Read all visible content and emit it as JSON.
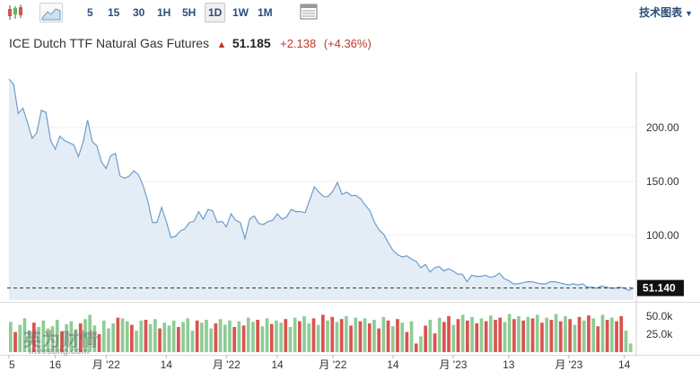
{
  "toolbar": {
    "candle_icon": "candlestick-icon",
    "area_icon": "area-chart-icon",
    "timeframes": [
      "5",
      "15",
      "30",
      "1H",
      "5H",
      "1D",
      "1W",
      "1M"
    ],
    "active_timeframe": "1D",
    "table_icon": "table-icon",
    "tech_chart_label": "技术图表"
  },
  "header": {
    "title": "ICE Dutch TTF Natural Gas Futures",
    "last_price": "51.185",
    "change": "+2.138",
    "change_pct": "(+4.36%)"
  },
  "watermark": {
    "main": "英为财情",
    "sub": "investing.com"
  },
  "colors": {
    "line": "#6d9cc9",
    "area": "#e4edf6",
    "up_volume": "#d9534f",
    "down_volume": "#8fcc96",
    "price_tag": "#111111",
    "change_up": "#c0392b"
  },
  "chart_data": {
    "type": "area",
    "price_tag": "51.140",
    "y_ticks": [
      "200.00",
      "150.00",
      "100.00"
    ],
    "y_tick_values": [
      200,
      150,
      100
    ],
    "ylim": [
      40,
      250
    ],
    "volume_ticks": [
      "50.0k",
      "25.0k"
    ],
    "volume_tick_values": [
      50000,
      25000
    ],
    "volume_ylim": [
      0,
      65000
    ],
    "x_labels": [
      "5",
      "16",
      "月 '22",
      "14",
      "月 '22",
      "14",
      "月 '22",
      "14",
      "月 '23",
      "13",
      "月 '23",
      "14"
    ],
    "x_label_index": [
      0,
      10,
      21,
      34,
      47,
      58,
      70,
      83,
      96,
      108,
      121,
      133
    ],
    "series": [
      {
        "values": [
          245,
          240,
          213,
          218,
          205,
          190,
          195,
          216,
          214,
          188,
          180,
          192,
          188,
          186,
          184,
          173,
          186,
          207,
          187,
          183,
          168,
          162,
          174,
          176,
          155,
          153,
          155,
          160,
          156,
          146,
          132,
          112,
          112,
          126,
          113,
          98,
          99,
          104,
          106,
          112,
          113,
          122,
          115,
          124,
          123,
          112,
          113,
          108,
          120,
          114,
          112,
          97,
          115,
          118,
          111,
          110,
          113,
          114,
          120,
          115,
          117,
          124,
          122,
          122,
          121,
          133,
          145,
          140,
          136,
          136,
          141,
          149,
          138,
          140,
          137,
          137,
          134,
          128,
          123,
          112,
          105,
          101,
          93,
          86,
          82,
          80,
          81,
          78,
          76,
          70,
          73,
          66,
          70,
          71,
          67,
          69,
          67,
          64,
          64,
          57,
          63,
          62,
          62,
          63,
          61,
          62,
          65,
          60,
          58,
          55,
          55,
          56,
          57,
          57,
          56,
          55,
          55,
          57,
          57,
          56,
          55,
          54,
          55,
          54,
          55,
          52,
          52,
          51,
          53,
          52,
          51,
          51,
          52,
          51,
          49,
          51.14
        ]
      }
    ],
    "volume": [
      {
        "v": 42000,
        "up": false
      },
      {
        "v": 28000,
        "up": true
      },
      {
        "v": 38000,
        "up": false
      },
      {
        "v": 47000,
        "up": false
      },
      {
        "v": 30000,
        "up": false
      },
      {
        "v": 41000,
        "up": true
      },
      {
        "v": 35000,
        "up": false
      },
      {
        "v": 44000,
        "up": false
      },
      {
        "v": 33000,
        "up": false
      },
      {
        "v": 36000,
        "up": false
      },
      {
        "v": 45000,
        "up": false
      },
      {
        "v": 29000,
        "up": true
      },
      {
        "v": 39000,
        "up": false
      },
      {
        "v": 43000,
        "up": false
      },
      {
        "v": 32000,
        "up": false
      },
      {
        "v": 40000,
        "up": true
      },
      {
        "v": 46000,
        "up": false
      },
      {
        "v": 52000,
        "up": false
      },
      {
        "v": 37000,
        "up": false
      },
      {
        "v": 25000,
        "up": true
      },
      {
        "v": 44000,
        "up": false
      },
      {
        "v": 33000,
        "up": false
      },
      {
        "v": 40000,
        "up": false
      },
      {
        "v": 48000,
        "up": true
      },
      {
        "v": 47000,
        "up": false
      },
      {
        "v": 43000,
        "up": false
      },
      {
        "v": 38000,
        "up": true
      },
      {
        "v": 30000,
        "up": false
      },
      {
        "v": 44000,
        "up": false
      },
      {
        "v": 45000,
        "up": true
      },
      {
        "v": 39000,
        "up": false
      },
      {
        "v": 46000,
        "up": false
      },
      {
        "v": 33000,
        "up": true
      },
      {
        "v": 41000,
        "up": false
      },
      {
        "v": 37000,
        "up": false
      },
      {
        "v": 44000,
        "up": false
      },
      {
        "v": 35000,
        "up": true
      },
      {
        "v": 42000,
        "up": false
      },
      {
        "v": 47000,
        "up": false
      },
      {
        "v": 30000,
        "up": false
      },
      {
        "v": 44000,
        "up": true
      },
      {
        "v": 41000,
        "up": false
      },
      {
        "v": 45000,
        "up": false
      },
      {
        "v": 33000,
        "up": false
      },
      {
        "v": 40000,
        "up": true
      },
      {
        "v": 46000,
        "up": false
      },
      {
        "v": 38000,
        "up": false
      },
      {
        "v": 44000,
        "up": false
      },
      {
        "v": 35000,
        "up": true
      },
      {
        "v": 43000,
        "up": false
      },
      {
        "v": 37000,
        "up": true
      },
      {
        "v": 48000,
        "up": false
      },
      {
        "v": 42000,
        "up": false
      },
      {
        "v": 45000,
        "up": true
      },
      {
        "v": 36000,
        "up": false
      },
      {
        "v": 47000,
        "up": false
      },
      {
        "v": 39000,
        "up": true
      },
      {
        "v": 44000,
        "up": false
      },
      {
        "v": 41000,
        "up": false
      },
      {
        "v": 46000,
        "up": true
      },
      {
        "v": 35000,
        "up": false
      },
      {
        "v": 48000,
        "up": false
      },
      {
        "v": 43000,
        "up": true
      },
      {
        "v": 50000,
        "up": false
      },
      {
        "v": 40000,
        "up": false
      },
      {
        "v": 47000,
        "up": true
      },
      {
        "v": 38000,
        "up": false
      },
      {
        "v": 52000,
        "up": true
      },
      {
        "v": 44000,
        "up": false
      },
      {
        "v": 49000,
        "up": true
      },
      {
        "v": 42000,
        "up": false
      },
      {
        "v": 46000,
        "up": true
      },
      {
        "v": 50000,
        "up": false
      },
      {
        "v": 37000,
        "up": true
      },
      {
        "v": 48000,
        "up": false
      },
      {
        "v": 43000,
        "up": true
      },
      {
        "v": 47000,
        "up": false
      },
      {
        "v": 40000,
        "up": true
      },
      {
        "v": 45000,
        "up": false
      },
      {
        "v": 33000,
        "up": true
      },
      {
        "v": 49000,
        "up": false
      },
      {
        "v": 44000,
        "up": true
      },
      {
        "v": 36000,
        "up": false
      },
      {
        "v": 46000,
        "up": true
      },
      {
        "v": 41000,
        "up": false
      },
      {
        "v": 28000,
        "up": true
      },
      {
        "v": 43000,
        "up": false
      },
      {
        "v": 12000,
        "up": true
      },
      {
        "v": 22000,
        "up": false
      },
      {
        "v": 37000,
        "up": true
      },
      {
        "v": 45000,
        "up": false
      },
      {
        "v": 26000,
        "up": true
      },
      {
        "v": 48000,
        "up": false
      },
      {
        "v": 42000,
        "up": true
      },
      {
        "v": 50000,
        "up": true
      },
      {
        "v": 38000,
        "up": false
      },
      {
        "v": 46000,
        "up": true
      },
      {
        "v": 52000,
        "up": false
      },
      {
        "v": 44000,
        "up": true
      },
      {
        "v": 49000,
        "up": false
      },
      {
        "v": 40000,
        "up": true
      },
      {
        "v": 47000,
        "up": false
      },
      {
        "v": 43000,
        "up": true
      },
      {
        "v": 51000,
        "up": false
      },
      {
        "v": 45000,
        "up": true
      },
      {
        "v": 48000,
        "up": true
      },
      {
        "v": 42000,
        "up": false
      },
      {
        "v": 53000,
        "up": false
      },
      {
        "v": 46000,
        "up": true
      },
      {
        "v": 50000,
        "up": false
      },
      {
        "v": 44000,
        "up": true
      },
      {
        "v": 49000,
        "up": false
      },
      {
        "v": 47000,
        "up": true
      },
      {
        "v": 52000,
        "up": false
      },
      {
        "v": 41000,
        "up": true
      },
      {
        "v": 48000,
        "up": false
      },
      {
        "v": 45000,
        "up": true
      },
      {
        "v": 53000,
        "up": false
      },
      {
        "v": 43000,
        "up": true
      },
      {
        "v": 50000,
        "up": false
      },
      {
        "v": 46000,
        "up": true
      },
      {
        "v": 38000,
        "up": false
      },
      {
        "v": 49000,
        "up": true
      },
      {
        "v": 44000,
        "up": false
      },
      {
        "v": 51000,
        "up": true
      },
      {
        "v": 47000,
        "up": false
      },
      {
        "v": 36000,
        "up": true
      },
      {
        "v": 52000,
        "up": false
      },
      {
        "v": 45000,
        "up": true
      },
      {
        "v": 48000,
        "up": false
      },
      {
        "v": 43000,
        "up": true
      },
      {
        "v": 50000,
        "up": true
      },
      {
        "v": 30000,
        "up": false
      },
      {
        "v": 12000,
        "up": false
      }
    ]
  }
}
